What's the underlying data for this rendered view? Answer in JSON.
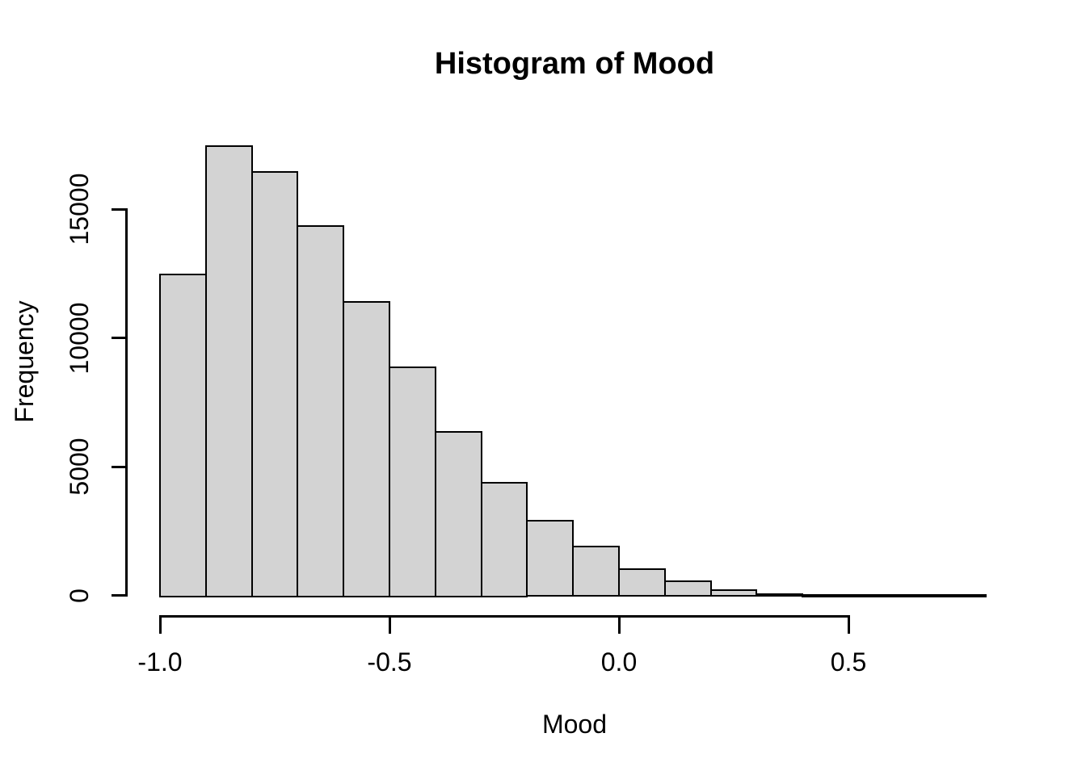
{
  "figure": {
    "title": "Histogram of Mood",
    "x_axis_label": "Mood",
    "y_axis_label": "Frequency"
  },
  "chart_data": {
    "type": "bar",
    "subtype": "histogram",
    "title": "Histogram of Mood",
    "xlabel": "Mood",
    "ylabel": "Frequency",
    "bin_edges": [
      -1.0,
      -0.9,
      -0.8,
      -0.7,
      -0.6,
      -0.5,
      -0.4,
      -0.3,
      -0.2,
      -0.1,
      0.0,
      0.1,
      0.2,
      0.3,
      0.4,
      0.5,
      0.6,
      0.7,
      0.8
    ],
    "counts": [
      12500,
      17500,
      16500,
      14400,
      11450,
      8900,
      6400,
      4400,
      2920,
      1930,
      1060,
      580,
      230,
      80,
      30,
      15,
      5,
      2
    ],
    "x_tick_values": [
      -1.0,
      -0.5,
      0.0,
      0.5
    ],
    "x_tick_labels": [
      "-1.0",
      "-0.5",
      "0.0",
      "0.5"
    ],
    "y_tick_values": [
      0,
      5000,
      10000,
      15000
    ],
    "y_tick_labels": [
      "0",
      "5000",
      "10000",
      "15000"
    ],
    "xlim": [
      -1.0,
      0.8
    ],
    "ylim": [
      0,
      15000
    ],
    "grid": false,
    "legend": false,
    "bar_fill_color": "#d3d3d3",
    "bar_border_color": "#000000",
    "background_color": "#ffffff",
    "text_color": "#000000"
  }
}
